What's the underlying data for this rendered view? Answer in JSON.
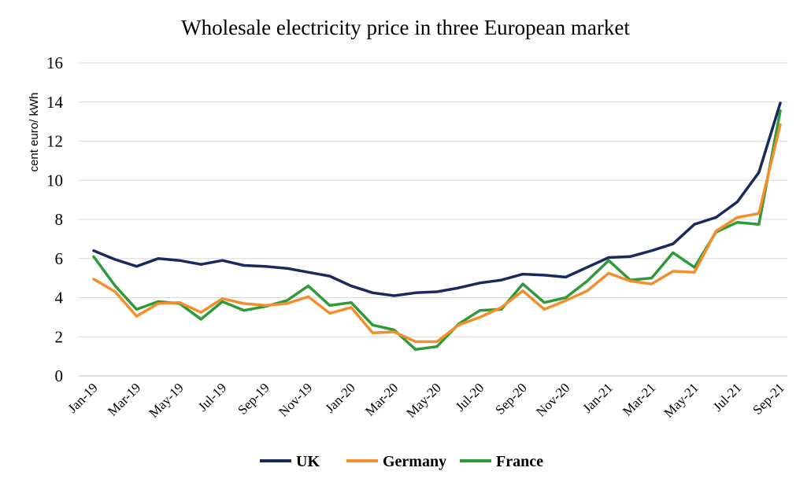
{
  "chart_data": {
    "type": "line",
    "title": "Wholesale electricity price in three European market",
    "xlabel": "",
    "ylabel": "cent euro/ kWh",
    "ylim": [
      0,
      16
    ],
    "yticks": [
      0,
      2,
      4,
      6,
      8,
      10,
      12,
      14,
      16
    ],
    "grid": "horizontal",
    "legend_position": "bottom",
    "x": [
      "Jan-19",
      "Feb-19",
      "Mar-19",
      "Apr-19",
      "May-19",
      "Jun-19",
      "Jul-19",
      "Aug-19",
      "Sep-19",
      "Oct-19",
      "Nov-19",
      "Dec-19",
      "Jan-20",
      "Feb-20",
      "Mar-20",
      "Apr-20",
      "May-20",
      "Jun-20",
      "Jul-20",
      "Aug-20",
      "Sep-20",
      "Oct-20",
      "Nov-20",
      "Dec-20",
      "Jan-21",
      "Feb-21",
      "Mar-21",
      "Apr-21",
      "May-21",
      "Jun-21",
      "Jul-21",
      "Aug-21",
      "Sep-21"
    ],
    "xtick_labels": [
      "Jan-19",
      "Mar-19",
      "May-19",
      "Jul-19",
      "Sep-19",
      "Nov-19",
      "Jan-20",
      "Mar-20",
      "May-20",
      "Jul-20",
      "Sep-20",
      "Nov-20",
      "Jan-21",
      "Mar-21",
      "May-21",
      "Jul-21",
      "Sep-21"
    ],
    "series": [
      {
        "name": "UK",
        "color": "#1b2a5c",
        "values": [
          6.4,
          5.95,
          5.6,
          6.0,
          5.9,
          5.7,
          5.9,
          5.65,
          5.6,
          5.5,
          5.3,
          5.1,
          4.6,
          4.25,
          4.1,
          4.25,
          4.3,
          4.5,
          4.75,
          4.9,
          5.2,
          5.15,
          5.05,
          5.55,
          6.05,
          6.1,
          6.4,
          6.75,
          7.75,
          8.1,
          8.9,
          10.4,
          13.95
        ]
      },
      {
        "name": "Germany",
        "color": "#f28e2b",
        "values": [
          4.95,
          4.3,
          3.05,
          3.7,
          3.75,
          3.25,
          3.95,
          3.7,
          3.6,
          3.7,
          4.05,
          3.2,
          3.5,
          2.2,
          2.25,
          1.75,
          1.75,
          2.6,
          3.0,
          3.5,
          4.35,
          3.4,
          3.85,
          4.35,
          5.25,
          4.85,
          4.7,
          5.35,
          5.3,
          7.4,
          8.1,
          8.3,
          12.85
        ]
      },
      {
        "name": "France",
        "color": "#2e9a3a",
        "values": [
          6.1,
          4.6,
          3.4,
          3.8,
          3.7,
          2.9,
          3.8,
          3.35,
          3.55,
          3.85,
          4.6,
          3.6,
          3.75,
          2.6,
          2.35,
          1.35,
          1.5,
          2.65,
          3.35,
          3.4,
          4.7,
          3.75,
          4.0,
          4.85,
          5.9,
          4.9,
          5.0,
          6.3,
          5.55,
          7.35,
          7.85,
          7.75,
          13.55
        ]
      }
    ]
  }
}
